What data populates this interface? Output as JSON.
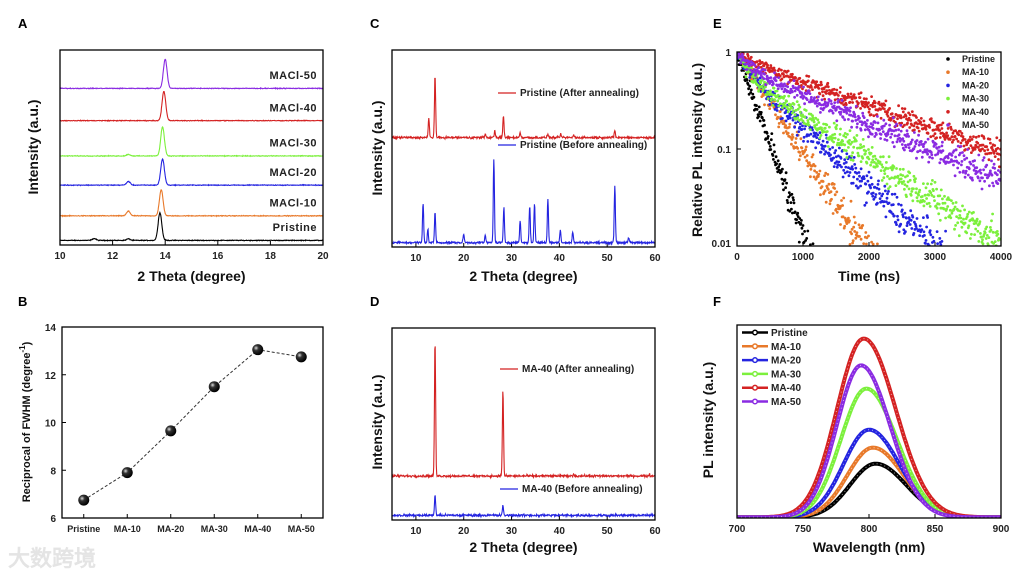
{
  "watermark": "大数跨境",
  "chart_data": [
    {
      "panel": "A",
      "type": "line",
      "xlabel": "2 Theta (degree)",
      "ylabel": "Intensity (a.u.)",
      "xlim": [
        10,
        20
      ],
      "xticks": [
        10,
        12,
        14,
        16,
        18,
        20
      ],
      "ylim": [
        -0.15,
        6.2
      ],
      "peak_width": 0.07,
      "series": [
        {
          "name": "Pristine",
          "color": "#000000",
          "offset": 0,
          "peaks": [
            [
              11.3,
              0.06
            ],
            [
              12.6,
              0.05
            ],
            [
              13.8,
              0.9
            ]
          ]
        },
        {
          "name": "MACl-10",
          "color": "#e8792a",
          "offset": 0.8,
          "peaks": [
            [
              12.6,
              0.15
            ],
            [
              13.85,
              0.85
            ]
          ]
        },
        {
          "name": "MACl-20",
          "color": "#2424e0",
          "offset": 1.8,
          "peaks": [
            [
              12.6,
              0.12
            ],
            [
              13.9,
              0.85
            ]
          ]
        },
        {
          "name": "MACl-30",
          "color": "#7cf03c",
          "offset": 2.75,
          "peaks": [
            [
              12.6,
              0.05
            ],
            [
              13.9,
              0.95
            ]
          ]
        },
        {
          "name": "MACl-40",
          "color": "#d42222",
          "offset": 3.9,
          "peaks": [
            [
              13.95,
              0.95
            ]
          ]
        },
        {
          "name": "MACl-50",
          "color": "#8a2be2",
          "offset": 4.95,
          "peaks": [
            [
              14.0,
              0.95
            ]
          ]
        }
      ]
    },
    {
      "panel": "B",
      "type": "scatter",
      "ylabel": "Reciprocal of FWHM (degree",
      "ylabel_sup": "-1",
      "ylabel_end": ")",
      "categories": [
        "Pristine",
        "MA-10",
        "MA-20",
        "MA-30",
        "MA-40",
        "MA-50"
      ],
      "values": [
        6.75,
        7.9,
        9.65,
        11.5,
        13.05,
        12.75
      ],
      "ylim": [
        6,
        14
      ],
      "yticks": [
        6,
        8,
        10,
        12,
        14
      ]
    },
    {
      "panel": "C",
      "type": "line",
      "xlabel": "2 Theta (degree)",
      "ylabel": "Intensity (a.u.)",
      "xlim": [
        5,
        60
      ],
      "xticks": [
        10,
        20,
        30,
        40,
        50,
        60
      ],
      "ylim": [
        -0.05,
        2.2
      ],
      "peak_width": 0.12,
      "series": [
        {
          "name": "Pristine (After annealing)",
          "color": "#d42222",
          "offset": 1.2,
          "peaks": [
            [
              12.7,
              0.22
            ],
            [
              14.0,
              0.72
            ],
            [
              24.5,
              0.04
            ],
            [
              26.5,
              0.08
            ],
            [
              28.3,
              0.25
            ],
            [
              31.8,
              0.06
            ],
            [
              37.6,
              0.04
            ],
            [
              40.3,
              0.04
            ],
            [
              43.0,
              0.03
            ],
            [
              51.6,
              0.08
            ]
          ]
        },
        {
          "name": "Pristine (Before annealing)",
          "color": "#2424e0",
          "offset": 0,
          "peaks": [
            [
              11.5,
              0.45
            ],
            [
              12.5,
              0.15
            ],
            [
              14.0,
              0.35
            ],
            [
              20.0,
              0.1
            ],
            [
              24.5,
              0.08
            ],
            [
              26.3,
              0.95
            ],
            [
              28.4,
              0.4
            ],
            [
              31.8,
              0.25
            ],
            [
              33.8,
              0.42
            ],
            [
              34.8,
              0.45
            ],
            [
              37.6,
              0.5
            ],
            [
              40.2,
              0.15
            ],
            [
              42.8,
              0.12
            ],
            [
              51.6,
              0.65
            ],
            [
              54.5,
              0.05
            ]
          ]
        }
      ]
    },
    {
      "panel": "D",
      "type": "line",
      "xlabel": "2 Theta (degree)",
      "ylabel": "Intensity (a.u.)",
      "xlim": [
        5,
        60
      ],
      "xticks": [
        10,
        20,
        30,
        40,
        50,
        60
      ],
      "ylim": [
        -0.05,
        2.0
      ],
      "peak_width": 0.12,
      "series": [
        {
          "name": "MA-40 (After annealing)",
          "color": "#d42222",
          "offset": 0.42,
          "peaks": [
            [
              14.0,
              1.45
            ],
            [
              28.2,
              0.92
            ],
            [
              43.0,
              0.02
            ],
            [
              58.8,
              0.015
            ]
          ]
        },
        {
          "name": "MA-40 (Before annealing)",
          "color": "#2424e0",
          "offset": 0,
          "peaks": [
            [
              14.0,
              0.22
            ],
            [
              28.2,
              0.1
            ]
          ]
        }
      ]
    },
    {
      "panel": "E",
      "type": "scatter",
      "xlabel": "Time (ns)",
      "ylabel": "Relative PL intensity (a.u.)",
      "xlim": [
        0,
        4000
      ],
      "xticks": [
        0,
        1000,
        2000,
        3000,
        4000
      ],
      "yscale": "log",
      "ylim": [
        0.01,
        1
      ],
      "yticks": [
        1,
        0.1,
        0.01
      ],
      "series": [
        {
          "name": "Pristine",
          "color": "#000000",
          "a_fast": 1.0,
          "tau_fast_ns": 230,
          "tau_slow_ns": 230
        },
        {
          "name": "MA-10",
          "color": "#e8792a",
          "a_fast": 1.0,
          "tau_fast_ns": 420,
          "tau_slow_ns": 420
        },
        {
          "name": "MA-20",
          "color": "#2424e0",
          "a_fast": 0.3,
          "tau_fast_ns": 150,
          "tau_slow_ns": 700
        },
        {
          "name": "MA-30",
          "color": "#7cf03c",
          "a_fast": 0.4,
          "tau_fast_ns": 150,
          "tau_slow_ns": 1000
        },
        {
          "name": "MA-40",
          "color": "#d42222",
          "a_fast": 0.15,
          "tau_fast_ns": 200,
          "tau_slow_ns": 1800
        },
        {
          "name": "MA-50",
          "color": "#8a2be2",
          "a_fast": 0.3,
          "tau_fast_ns": 200,
          "tau_slow_ns": 1500
        }
      ]
    },
    {
      "panel": "F",
      "type": "line",
      "xlabel": "Wavelength (nm)",
      "ylabel": "PL intensity (a.u.)",
      "xlim": [
        700,
        900
      ],
      "xticks": [
        700,
        750,
        800,
        850,
        900
      ],
      "ylim": [
        0,
        1.08
      ],
      "series": [
        {
          "name": "Pristine",
          "color": "#000000",
          "center_nm": 805,
          "height": 0.3,
          "sigma_nm": 21
        },
        {
          "name": "MA-10",
          "color": "#e8792a",
          "center_nm": 803,
          "height": 0.39,
          "sigma_nm": 21
        },
        {
          "name": "MA-20",
          "color": "#2424e0",
          "center_nm": 800,
          "height": 0.49,
          "sigma_nm": 21
        },
        {
          "name": "MA-30",
          "color": "#7cf03c",
          "center_nm": 798,
          "height": 0.72,
          "sigma_nm": 21
        },
        {
          "name": "MA-40",
          "color": "#d42222",
          "center_nm": 796,
          "height": 1.0,
          "sigma_nm": 22
        },
        {
          "name": "MA-50",
          "color": "#8a2be2",
          "center_nm": 794,
          "height": 0.85,
          "sigma_nm": 20
        }
      ]
    }
  ]
}
